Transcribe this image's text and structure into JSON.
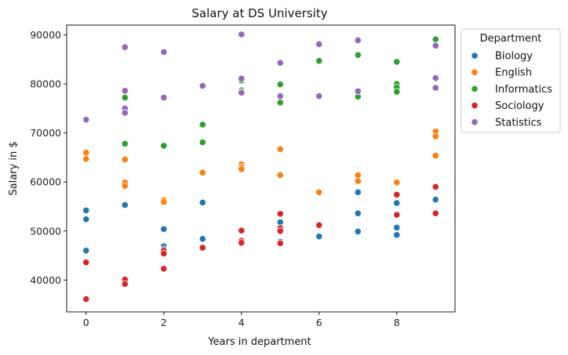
{
  "colors": {
    "Biology": "#1f77b4",
    "English": "#ff7f0e",
    "Informatics": "#2ca02c",
    "Sociology": "#d62728",
    "Statistics": "#9467bd"
  },
  "chart_data": {
    "type": "scatter",
    "title": "Salary at DS University",
    "xlabel": "Years in department",
    "ylabel": "Salary in $",
    "xlim": [
      -0.5,
      9.5
    ],
    "ylim": [
      33500,
      92000
    ],
    "xticks": [
      0,
      2,
      4,
      6,
      8
    ],
    "yticks": [
      40000,
      50000,
      60000,
      70000,
      80000,
      90000
    ],
    "grid": false,
    "legend": {
      "title": "Department",
      "placement": "outside-top-right"
    },
    "series": [
      {
        "name": "Biology",
        "points": [
          [
            0,
            54200
          ],
          [
            0,
            52400
          ],
          [
            0,
            46000
          ],
          [
            1,
            55300
          ],
          [
            2,
            50400
          ],
          [
            2,
            46900
          ],
          [
            2,
            46300
          ],
          [
            3,
            55800
          ],
          [
            3,
            48400
          ],
          [
            4,
            47600
          ],
          [
            5,
            51800
          ],
          [
            5,
            50500
          ],
          [
            5,
            47800
          ],
          [
            6,
            48900
          ],
          [
            7,
            57900
          ],
          [
            7,
            53600
          ],
          [
            7,
            49900
          ],
          [
            8,
            55700
          ],
          [
            8,
            50700
          ],
          [
            8,
            49200
          ],
          [
            9,
            56400
          ]
        ]
      },
      {
        "name": "English",
        "points": [
          [
            0,
            66000
          ],
          [
            0,
            64700
          ],
          [
            1,
            64600
          ],
          [
            1,
            59900
          ],
          [
            1,
            59200
          ],
          [
            2,
            56300
          ],
          [
            2,
            55900
          ],
          [
            3,
            61900
          ],
          [
            4,
            63600
          ],
          [
            4,
            63000
          ],
          [
            4,
            62600
          ],
          [
            5,
            66700
          ],
          [
            5,
            61400
          ],
          [
            6,
            57900
          ],
          [
            7,
            61400
          ],
          [
            7,
            60200
          ],
          [
            8,
            59900
          ],
          [
            9,
            70300
          ],
          [
            9,
            69300
          ],
          [
            9,
            65400
          ]
        ]
      },
      {
        "name": "Informatics",
        "points": [
          [
            1,
            77200
          ],
          [
            1,
            67800
          ],
          [
            2,
            67400
          ],
          [
            3,
            71700
          ],
          [
            3,
            68100
          ],
          [
            4,
            80700
          ],
          [
            4,
            78700
          ],
          [
            4,
            78400
          ],
          [
            5,
            79900
          ],
          [
            5,
            76200
          ],
          [
            6,
            84700
          ],
          [
            7,
            85900
          ],
          [
            7,
            77400
          ],
          [
            8,
            84500
          ],
          [
            8,
            80000
          ],
          [
            8,
            79300
          ],
          [
            8,
            78400
          ],
          [
            9,
            89100
          ]
        ]
      },
      {
        "name": "Sociology",
        "points": [
          [
            0,
            43600
          ],
          [
            0,
            36100
          ],
          [
            1,
            40100
          ],
          [
            1,
            39200
          ],
          [
            2,
            46000
          ],
          [
            2,
            45400
          ],
          [
            2,
            42300
          ],
          [
            3,
            46600
          ],
          [
            4,
            50100
          ],
          [
            4,
            48000
          ],
          [
            4,
            47600
          ],
          [
            5,
            53500
          ],
          [
            5,
            50600
          ],
          [
            5,
            50000
          ],
          [
            5,
            47500
          ],
          [
            6,
            51200
          ],
          [
            8,
            57400
          ],
          [
            8,
            53300
          ],
          [
            9,
            59000
          ],
          [
            9,
            53600
          ]
        ]
      },
      {
        "name": "Statistics",
        "points": [
          [
            0,
            72700
          ],
          [
            1,
            87500
          ],
          [
            1,
            78600
          ],
          [
            1,
            75000
          ],
          [
            1,
            74100
          ],
          [
            2,
            86500
          ],
          [
            2,
            77200
          ],
          [
            3,
            79600
          ],
          [
            4,
            90100
          ],
          [
            4,
            81100
          ],
          [
            4,
            78200
          ],
          [
            5,
            84300
          ],
          [
            5,
            77500
          ],
          [
            6,
            88100
          ],
          [
            6,
            77500
          ],
          [
            7,
            88900
          ],
          [
            7,
            78500
          ],
          [
            9,
            87800
          ],
          [
            9,
            81200
          ],
          [
            9,
            79200
          ]
        ]
      }
    ]
  }
}
